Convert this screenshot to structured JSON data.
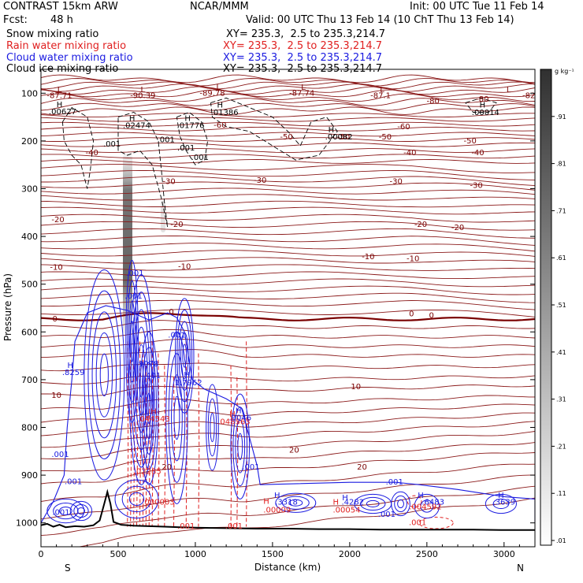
{
  "header": {
    "model": "CONTRAST 15km ARW",
    "org": "NCAR/MMM",
    "init": "Init: 00 UTC Tue 11 Feb 14",
    "fcst_label": "Fcst:",
    "fcst_value": "48 h",
    "valid": "Valid: 00 UTC Thu 13 Feb 14 (10 ChT Thu 13 Feb 14)",
    "fields": [
      {
        "name": "Snow mixing ratio",
        "xy": "XY= 235.3,  2.5 to 235.3,214.7",
        "color": "#000000"
      },
      {
        "name": "Rain water mixing ratio",
        "xy": "XY= 235.3,  2.5 to 235.3,214.7",
        "color": "#e02020"
      },
      {
        "name": "Cloud water mixing ratio",
        "xy": "XY= 235.3,  2.5 to 235.3,214.7",
        "color": "#1a1ae0"
      },
      {
        "name": "Cloud ice mixing ratio",
        "xy": "XY= 235.3,  2.5 to 235.3,214.7",
        "color": "#000000"
      }
    ]
  },
  "chart_data": {
    "type": "contour cross-section",
    "xlabel": "Distance (km)",
    "ylabel": "Pressure (hPa)",
    "xlim": [
      0,
      3200
    ],
    "ylim": [
      1050,
      50
    ],
    "xticks": [
      0,
      500,
      1000,
      1500,
      2000,
      2500,
      3000
    ],
    "yticks": [
      100,
      200,
      300,
      400,
      500,
      600,
      700,
      800,
      900,
      1000
    ],
    "x_end_labels": {
      "left": "S",
      "right": "N"
    },
    "colorbar": {
      "unit": "g kg⁻¹",
      "ticks": [
        0.01,
        0.11,
        0.21,
        0.31,
        0.41,
        0.51,
        0.61,
        0.71,
        0.81,
        0.91
      ],
      "tick_labels": [
        ".01",
        ".11",
        ".21",
        ".31",
        ".41",
        ".51",
        ".61",
        ".71",
        ".81",
        ".91"
      ]
    },
    "temperature_labels": [
      {
        "x": 120,
        "p": 110,
        "text": "-87.71"
      },
      {
        "x": 660,
        "p": 110,
        "text": "-90.39"
      },
      {
        "x": 1110,
        "p": 105,
        "text": "-89.78"
      },
      {
        "x": 1690,
        "p": 105,
        "text": "-87.74"
      },
      {
        "x": 2200,
        "p": 110,
        "text": "-87.1"
      },
      {
        "x": 2540,
        "p": 122,
        "text": "-80"
      },
      {
        "x": 2860,
        "p": 118,
        "text": "-80"
      },
      {
        "x": 3160,
        "p": 110,
        "text": "-82"
      },
      {
        "x": 1160,
        "p": 172,
        "text": "-60"
      },
      {
        "x": 2350,
        "p": 175,
        "text": "-60"
      },
      {
        "x": 1590,
        "p": 197,
        "text": "-50"
      },
      {
        "x": 1960,
        "p": 197,
        "text": "-50"
      },
      {
        "x": 2230,
        "p": 197,
        "text": "-50"
      },
      {
        "x": 2780,
        "p": 205,
        "text": "-50"
      },
      {
        "x": 330,
        "p": 230,
        "text": "-40"
      },
      {
        "x": 2390,
        "p": 230,
        "text": "-40"
      },
      {
        "x": 2830,
        "p": 230,
        "text": "-40"
      },
      {
        "x": 830,
        "p": 290,
        "text": "-30"
      },
      {
        "x": 1420,
        "p": 288,
        "text": "-30"
      },
      {
        "x": 2300,
        "p": 290,
        "text": "-30"
      },
      {
        "x": 2820,
        "p": 298,
        "text": "-30"
      },
      {
        "x": 110,
        "p": 370,
        "text": "-20"
      },
      {
        "x": 880,
        "p": 380,
        "text": "-20"
      },
      {
        "x": 2460,
        "p": 380,
        "text": "-20"
      },
      {
        "x": 2700,
        "p": 387,
        "text": "-20"
      },
      {
        "x": 100,
        "p": 470,
        "text": "-10"
      },
      {
        "x": 930,
        "p": 468,
        "text": "-10"
      },
      {
        "x": 2120,
        "p": 448,
        "text": "-10"
      },
      {
        "x": 2410,
        "p": 452,
        "text": "-10"
      },
      {
        "x": 90,
        "p": 578,
        "text": "0"
      },
      {
        "x": 845,
        "p": 563,
        "text": "0"
      },
      {
        "x": 2400,
        "p": 567,
        "text": "0"
      },
      {
        "x": 2530,
        "p": 571,
        "text": "0"
      },
      {
        "x": 100,
        "p": 738,
        "text": "10"
      },
      {
        "x": 2040,
        "p": 720,
        "text": "10"
      },
      {
        "x": 815,
        "p": 888,
        "text": "20"
      },
      {
        "x": 1640,
        "p": 853,
        "text": "20"
      },
      {
        "x": 2080,
        "p": 888,
        "text": "20"
      }
    ],
    "rain_labels": [
      {
        "x": 730,
        "p": 772,
        "text": "H"
      },
      {
        "x": 730,
        "p": 788,
        "text": ".044543"
      },
      {
        "x": 1240,
        "p": 778,
        "text": "H"
      },
      {
        "x": 1250,
        "p": 793,
        "text": ".048563"
      },
      {
        "x": 690,
        "p": 897,
        "text": ".02285"
      },
      {
        "x": 760,
        "p": 962,
        "text": ".000003"
      },
      {
        "x": 940,
        "p": 1012,
        "text": ".001"
      },
      {
        "x": 1250,
        "p": 1012,
        "text": ".001"
      },
      {
        "x": 1460,
        "p": 960,
        "text": "H"
      },
      {
        "x": 1530,
        "p": 978,
        "text": ".00009"
      },
      {
        "x": 1910,
        "p": 962,
        "text": "H"
      },
      {
        "x": 1980,
        "p": 978,
        "text": ".00054"
      },
      {
        "x": 2490,
        "p": 972,
        "text": ".004592"
      },
      {
        "x": 2440,
        "p": 1005,
        "text": ".001"
      }
    ],
    "cloud_water_labels": [
      {
        "x": 190,
        "p": 675,
        "text": "H"
      },
      {
        "x": 210,
        "p": 690,
        "text": ".8259"
      },
      {
        "x": 690,
        "p": 672,
        "text": ".9078"
      },
      {
        "x": 720,
        "p": 697,
        "text": ".401"
      },
      {
        "x": 945,
        "p": 695,
        "text": "H"
      },
      {
        "x": 955,
        "p": 712,
        "text": "1.7962"
      },
      {
        "x": 1280,
        "p": 770,
        "text": "H"
      },
      {
        "x": 1290,
        "p": 785,
        "text": ".9046"
      },
      {
        "x": 610,
        "p": 482,
        "text": ".001"
      },
      {
        "x": 600,
        "p": 530,
        "text": ".001"
      },
      {
        "x": 880,
        "p": 612,
        "text": ".001"
      },
      {
        "x": 125,
        "p": 862,
        "text": ".001"
      },
      {
        "x": 210,
        "p": 919,
        "text": ".001"
      },
      {
        "x": 130,
        "p": 983,
        "text": ".001"
      },
      {
        "x": 1360,
        "p": 888,
        "text": ".001"
      },
      {
        "x": 1530,
        "p": 948,
        "text": "H"
      },
      {
        "x": 1590,
        "p": 962,
        "text": ".3318"
      },
      {
        "x": 1970,
        "p": 953,
        "text": "H"
      },
      {
        "x": 2020,
        "p": 962,
        "text": ".4282"
      },
      {
        "x": 2290,
        "p": 920,
        "text": ".001"
      },
      {
        "x": 2240,
        "p": 987,
        "text": ".001"
      },
      {
        "x": 2460,
        "p": 948,
        "text": "H"
      },
      {
        "x": 2540,
        "p": 962,
        "text": ".6483"
      },
      {
        "x": 2980,
        "p": 948,
        "text": "H"
      },
      {
        "x": 3000,
        "p": 962,
        "text": ".3639"
      }
    ],
    "ice_labels": [
      {
        "x": 120,
        "p": 129,
        "text": "H"
      },
      {
        "x": 140,
        "p": 144,
        "text": ".00627"
      },
      {
        "x": 590,
        "p": 158,
        "text": "H"
      },
      {
        "x": 620,
        "p": 173,
        "text": ".02474"
      },
      {
        "x": 950,
        "p": 158,
        "text": "H"
      },
      {
        "x": 970,
        "p": 173,
        "text": ".01776"
      },
      {
        "x": 1160,
        "p": 130,
        "text": "H"
      },
      {
        "x": 1190,
        "p": 146,
        "text": ".01386"
      },
      {
        "x": 2860,
        "p": 130,
        "text": "H"
      },
      {
        "x": 2880,
        "p": 146,
        "text": ".00014"
      },
      {
        "x": 1880,
        "p": 182,
        "text": "H"
      },
      {
        "x": 1930,
        "p": 197,
        "text": ".00082"
      },
      {
        "x": 460,
        "p": 212,
        "text": ".001"
      },
      {
        "x": 810,
        "p": 203,
        "text": ".001"
      },
      {
        "x": 940,
        "p": 220,
        "text": ".001"
      },
      {
        "x": 1030,
        "p": 240,
        "text": ".001"
      }
    ],
    "lows": [
      {
        "x": 120,
        "p": 98,
        "text": "L"
      },
      {
        "x": 660,
        "p": 98,
        "text": "L"
      },
      {
        "x": 1150,
        "p": 93,
        "text": "L"
      },
      {
        "x": 1700,
        "p": 93,
        "text": "L"
      },
      {
        "x": 2210,
        "p": 98,
        "text": "L"
      },
      {
        "x": 3030,
        "p": 98,
        "text": "L"
      }
    ],
    "terrain": [
      [
        0,
        1005
      ],
      [
        40,
        1002
      ],
      [
        80,
        1008
      ],
      [
        120,
        1004
      ],
      [
        160,
        1009
      ],
      [
        220,
        1007
      ],
      [
        280,
        1008
      ],
      [
        340,
        1005
      ],
      [
        380,
        995
      ],
      [
        410,
        960
      ],
      [
        430,
        935
      ],
      [
        450,
        960
      ],
      [
        470,
        998
      ],
      [
        520,
        1004
      ],
      [
        600,
        1006
      ],
      [
        700,
        1007
      ],
      [
        800,
        1008
      ],
      [
        900,
        1009
      ],
      [
        1000,
        1010
      ],
      [
        1200,
        1011
      ],
      [
        1400,
        1012
      ],
      [
        1600,
        1012
      ],
      [
        1800,
        1013
      ],
      [
        2000,
        1013
      ],
      [
        2200,
        1014
      ],
      [
        2400,
        1014
      ],
      [
        2600,
        1014
      ],
      [
        2800,
        1014
      ],
      [
        3000,
        1015
      ],
      [
        3200,
        1015
      ]
    ]
  }
}
